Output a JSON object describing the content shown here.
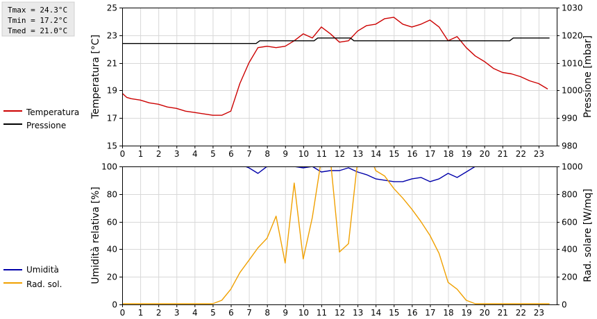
{
  "stats": {
    "tmax": "Tmax = 24.3°C",
    "tmin": "Tmin = 17.2°C",
    "tmed": "Tmed = 21.0°C"
  },
  "legend_top": [
    {
      "label": "Temperatura",
      "color": "#cc0000"
    },
    {
      "label": "Pressione",
      "color": "#000000"
    }
  ],
  "legend_bottom": [
    {
      "label": "Umidità",
      "color": "#0000aa"
    },
    {
      "label": "Rad. sol.",
      "color": "#f0a000"
    }
  ],
  "chart_data": [
    {
      "type": "line",
      "xlim": [
        0,
        24
      ],
      "xticks": [
        "0",
        "1",
        "2",
        "3",
        "4",
        "5",
        "6",
        "7",
        "8",
        "9",
        "10",
        "11",
        "12",
        "13",
        "14",
        "15",
        "16",
        "17",
        "18",
        "19",
        "20",
        "21",
        "22",
        "23"
      ],
      "grid": true,
      "ylabel_left": "Temperatura [°C]",
      "ylim_left": [
        15,
        25
      ],
      "yticks_left": [
        "15",
        "17",
        "19",
        "21",
        "23",
        "25"
      ],
      "ylabel_right": "Pressione [mbar]",
      "ylim_right": [
        980,
        1030
      ],
      "yticks_right": [
        "980",
        "990",
        "1000",
        "1010",
        "1020",
        "1030"
      ],
      "series": [
        {
          "name": "Temperatura",
          "axis": "left",
          "color": "#cc0000",
          "x": [
            0,
            0.25,
            0.5,
            1,
            1.5,
            2,
            2.5,
            3,
            3.5,
            4,
            4.5,
            5,
            5.5,
            6,
            6.5,
            7,
            7.5,
            8,
            8.5,
            9,
            9.5,
            10,
            10.5,
            11,
            11.5,
            12,
            12.5,
            13,
            13.5,
            14,
            14.5,
            15,
            15.5,
            16,
            16.5,
            17,
            17.5,
            18,
            18.5,
            19,
            19.5,
            20,
            20.5,
            21,
            21.5,
            22,
            22.5,
            23,
            23.5
          ],
          "values": [
            18.8,
            18.5,
            18.4,
            18.3,
            18.1,
            18.0,
            17.8,
            17.7,
            17.5,
            17.4,
            17.3,
            17.2,
            17.2,
            17.5,
            19.5,
            21.0,
            22.1,
            22.2,
            22.1,
            22.2,
            22.6,
            23.1,
            22.8,
            23.6,
            23.1,
            22.5,
            22.6,
            23.3,
            23.7,
            23.8,
            24.2,
            24.3,
            23.8,
            23.6,
            23.8,
            24.1,
            23.6,
            22.6,
            22.9,
            22.1,
            21.5,
            21.1,
            20.6,
            20.3,
            20.2,
            20.0,
            19.7,
            19.5,
            19.1
          ]
        },
        {
          "name": "Pressione",
          "axis": "right",
          "color": "#000000",
          "x": [
            0,
            7.4,
            7.6,
            10.6,
            10.8,
            12.6,
            12.8,
            21.4,
            21.6,
            23.6
          ],
          "values": [
            1017,
            1017,
            1018,
            1018,
            1019,
            1019,
            1018,
            1018,
            1019,
            1019
          ]
        }
      ]
    },
    {
      "type": "line",
      "xlim": [
        0,
        24
      ],
      "xticks": [
        "0",
        "1",
        "2",
        "3",
        "4",
        "5",
        "6",
        "7",
        "8",
        "9",
        "10",
        "11",
        "12",
        "13",
        "14",
        "15",
        "16",
        "17",
        "18",
        "19",
        "20",
        "21",
        "22",
        "23"
      ],
      "grid": true,
      "ylabel_left": "Umidità relativa [%]",
      "ylim_left": [
        0,
        100
      ],
      "yticks_left": [
        "0",
        "20",
        "40",
        "60",
        "80",
        "100"
      ],
      "ylabel_right": "Rad. solare [W/mq]",
      "ylim_right": [
        0,
        1000
      ],
      "yticks_right": [
        "0",
        "200",
        "400",
        "600",
        "800",
        "1000"
      ],
      "series": [
        {
          "name": "Umidità",
          "axis": "left",
          "color": "#0000aa",
          "x": [
            0,
            6.8,
            7.0,
            7.5,
            8.0,
            8.5,
            9.5,
            10.0,
            10.5,
            11.0,
            11.5,
            12.0,
            12.5,
            13.0,
            13.5,
            14.0,
            15.0,
            15.5,
            16.0,
            16.5,
            17.0,
            17.5,
            18.0,
            18.5,
            19.0,
            19.5,
            23.6
          ],
          "values": [
            100,
            100,
            99,
            95,
            100,
            100,
            100,
            99,
            100,
            96,
            97,
            97,
            99,
            96,
            94,
            91,
            89,
            89,
            91,
            92,
            89,
            91,
            95,
            92,
            96,
            100,
            100
          ]
        },
        {
          "name": "Rad. sol.",
          "axis": "right",
          "color": "#f0a000",
          "x": [
            0,
            5.0,
            5.5,
            6.0,
            6.5,
            7.0,
            7.5,
            8.0,
            8.5,
            9.0,
            9.5,
            10.0,
            10.5,
            11.0,
            11.5,
            12.0,
            12.5,
            13.0,
            13.2,
            13.8,
            14.0,
            14.5,
            15.0,
            15.5,
            16.0,
            16.5,
            17.0,
            17.5,
            18.0,
            18.5,
            19.0,
            19.5,
            20.0,
            23.6
          ],
          "values": [
            5,
            5,
            30,
            110,
            230,
            320,
            410,
            480,
            640,
            300,
            880,
            330,
            630,
            1050,
            1050,
            380,
            440,
            1040,
            1040,
            1040,
            970,
            930,
            840,
            770,
            690,
            600,
            500,
            370,
            160,
            110,
            30,
            5,
            5,
            5
          ]
        }
      ]
    }
  ]
}
